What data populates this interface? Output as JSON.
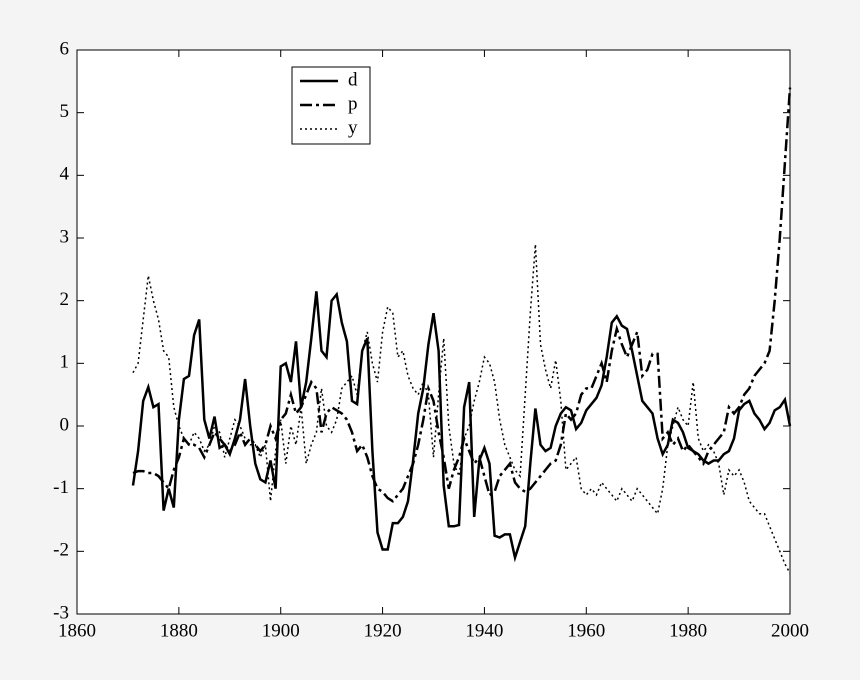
{
  "chart_data": {
    "type": "line",
    "x": [
      1871,
      1872,
      1873,
      1874,
      1875,
      1876,
      1877,
      1878,
      1879,
      1880,
      1881,
      1882,
      1883,
      1884,
      1885,
      1886,
      1887,
      1888,
      1889,
      1890,
      1891,
      1892,
      1893,
      1894,
      1895,
      1896,
      1897,
      1898,
      1899,
      1900,
      1901,
      1902,
      1903,
      1904,
      1905,
      1906,
      1907,
      1908,
      1909,
      1910,
      1911,
      1912,
      1913,
      1914,
      1915,
      1916,
      1917,
      1918,
      1919,
      1920,
      1921,
      1922,
      1923,
      1924,
      1925,
      1926,
      1927,
      1928,
      1929,
      1930,
      1931,
      1932,
      1933,
      1934,
      1935,
      1936,
      1937,
      1938,
      1939,
      1940,
      1941,
      1942,
      1943,
      1944,
      1945,
      1946,
      1947,
      1948,
      1949,
      1950,
      1951,
      1952,
      1953,
      1954,
      1955,
      1956,
      1957,
      1958,
      1959,
      1960,
      1961,
      1962,
      1963,
      1964,
      1965,
      1966,
      1967,
      1968,
      1969,
      1970,
      1971,
      1972,
      1973,
      1974,
      1975,
      1976,
      1977,
      1978,
      1979,
      1980,
      1981,
      1982,
      1983,
      1984,
      1985,
      1986,
      1987,
      1988,
      1989,
      1990,
      1991,
      1992,
      1993,
      1994,
      1995,
      1996,
      1997,
      1998,
      1999,
      2000
    ],
    "series": [
      {
        "name": "d",
        "color": "#000000",
        "style": "solid",
        "values": [
          -0.95,
          -0.4,
          0.4,
          0.62,
          0.3,
          0.35,
          -1.35,
          -1.0,
          -1.3,
          0.1,
          0.75,
          0.8,
          1.45,
          1.7,
          0.1,
          -0.2,
          0.15,
          -0.35,
          -0.3,
          -0.45,
          -0.2,
          0.1,
          0.75,
          0.0,
          -0.6,
          -0.85,
          -0.9,
          -0.55,
          -1.0,
          0.95,
          1.0,
          0.7,
          1.35,
          0.3,
          0.7,
          1.4,
          2.15,
          1.2,
          1.1,
          2.0,
          2.1,
          1.65,
          1.35,
          0.4,
          0.35,
          1.2,
          1.4,
          -0.4,
          -1.7,
          -1.97,
          -1.97,
          -1.55,
          -1.55,
          -1.45,
          -1.2,
          -0.55,
          0.2,
          0.6,
          1.3,
          1.8,
          1.2,
          -0.95,
          -1.6,
          -1.6,
          -1.58,
          0.3,
          0.7,
          -1.45,
          -0.55,
          -0.35,
          -0.6,
          -1.75,
          -1.78,
          -1.73,
          -1.73,
          -2.1,
          -1.85,
          -1.6,
          -0.6,
          0.28,
          -0.3,
          -0.4,
          -0.35,
          0.0,
          0.2,
          0.3,
          0.25,
          -0.05,
          0.05,
          0.25,
          0.35,
          0.45,
          0.65,
          1.1,
          1.65,
          1.75,
          1.6,
          1.55,
          1.2,
          0.8,
          0.4,
          0.3,
          0.2,
          -0.2,
          -0.45,
          -0.3,
          0.1,
          0.05,
          -0.1,
          -0.35,
          -0.4,
          -0.45,
          -0.55,
          -0.6,
          -0.55,
          -0.55,
          -0.45,
          -0.4,
          -0.2,
          0.25,
          0.35,
          0.4,
          0.2,
          0.1,
          -0.05,
          0.05,
          0.25,
          0.3,
          0.42,
          0.0
        ]
      },
      {
        "name": "p",
        "color": "#000000",
        "style": "dashdot",
        "values": [
          -0.75,
          -0.72,
          -0.72,
          -0.75,
          -0.75,
          -0.8,
          -0.9,
          -1.0,
          -0.7,
          -0.5,
          -0.2,
          -0.3,
          -0.3,
          -0.35,
          -0.5,
          -0.3,
          -0.1,
          -0.2,
          -0.3,
          -0.4,
          -0.3,
          -0.1,
          -0.3,
          -0.2,
          -0.3,
          -0.4,
          -0.3,
          0.0,
          -0.2,
          0.1,
          0.2,
          0.5,
          0.2,
          0.3,
          0.5,
          0.7,
          0.6,
          -0.1,
          0.2,
          0.3,
          0.25,
          0.2,
          0.1,
          -0.1,
          -0.4,
          -0.3,
          -0.5,
          -0.8,
          -1.0,
          -1.05,
          -1.15,
          -1.2,
          -1.1,
          -1.0,
          -0.8,
          -0.6,
          -0.3,
          0.1,
          0.6,
          0.4,
          -0.1,
          -0.5,
          -1.0,
          -0.7,
          -0.5,
          -0.2,
          -0.4,
          -0.6,
          -0.5,
          -0.8,
          -1.1,
          -1.05,
          -0.8,
          -0.7,
          -0.6,
          -0.9,
          -1.0,
          -1.05,
          -1.0,
          -0.9,
          -0.8,
          -0.7,
          -0.6,
          -0.55,
          -0.3,
          0.2,
          0.1,
          0.2,
          0.5,
          0.6,
          0.6,
          0.8,
          1.0,
          0.7,
          1.2,
          1.55,
          1.3,
          1.1,
          1.3,
          1.5,
          0.8,
          0.9,
          1.15,
          1.15,
          -0.2,
          -0.1,
          -0.3,
          -0.2,
          -0.4,
          -0.3,
          -0.4,
          -0.5,
          -0.6,
          -0.4,
          -0.3,
          -0.2,
          -0.1,
          0.3,
          0.2,
          0.3,
          0.5,
          0.6,
          0.8,
          0.9,
          1.0,
          1.2,
          2.0,
          3.0,
          4.2,
          5.4
        ]
      },
      {
        "name": "y",
        "color": "#000000",
        "style": "dotted",
        "values": [
          0.85,
          1.0,
          1.7,
          2.4,
          2.0,
          1.7,
          1.2,
          1.1,
          0.3,
          0.0,
          -0.2,
          -0.3,
          -0.1,
          -0.2,
          -0.4,
          -0.3,
          0.0,
          -0.1,
          -0.5,
          -0.2,
          0.1,
          0.0,
          -0.2,
          -0.3,
          -0.3,
          -0.5,
          -0.3,
          -1.2,
          -0.4,
          0.1,
          -0.6,
          0.0,
          -0.3,
          0.3,
          -0.6,
          -0.3,
          -0.1,
          0.6,
          0.0,
          -0.1,
          0.1,
          0.6,
          0.7,
          0.8,
          0.5,
          1.2,
          1.5,
          1.0,
          0.7,
          1.5,
          1.9,
          1.8,
          1.1,
          1.2,
          0.8,
          0.6,
          0.5,
          0.7,
          0.5,
          -0.5,
          0.5,
          1.4,
          0.0,
          -0.6,
          -0.8,
          -0.2,
          0.0,
          0.4,
          0.7,
          1.1,
          1.0,
          0.7,
          0.1,
          -0.3,
          -0.5,
          -0.7,
          -0.8,
          0.5,
          1.8,
          2.9,
          1.3,
          0.9,
          0.6,
          1.05,
          0.4,
          -0.7,
          -0.6,
          -0.5,
          -1.0,
          -1.1,
          -1.0,
          -1.1,
          -0.9,
          -1.0,
          -1.1,
          -1.2,
          -1.0,
          -1.1,
          -1.2,
          -1.0,
          -1.1,
          -1.2,
          -1.3,
          -1.4,
          -1.0,
          -0.3,
          0.0,
          0.3,
          0.1,
          0.0,
          0.7,
          -0.2,
          -0.4,
          -0.3,
          -0.4,
          -0.6,
          -1.1,
          -0.7,
          -0.8,
          -0.7,
          -0.9,
          -1.2,
          -1.3,
          -1.4,
          -1.4,
          -1.6,
          -1.8,
          -2.0,
          -2.2,
          -2.35
        ]
      }
    ],
    "xlim": [
      1860,
      2000
    ],
    "xticks": [
      1860,
      1880,
      1900,
      1920,
      1940,
      1960,
      1980,
      2000
    ],
    "ylim": [
      -3,
      6
    ],
    "yticks": [
      -3,
      -2,
      -1,
      0,
      1,
      2,
      3,
      4,
      5,
      6
    ],
    "legend": "upper left"
  }
}
